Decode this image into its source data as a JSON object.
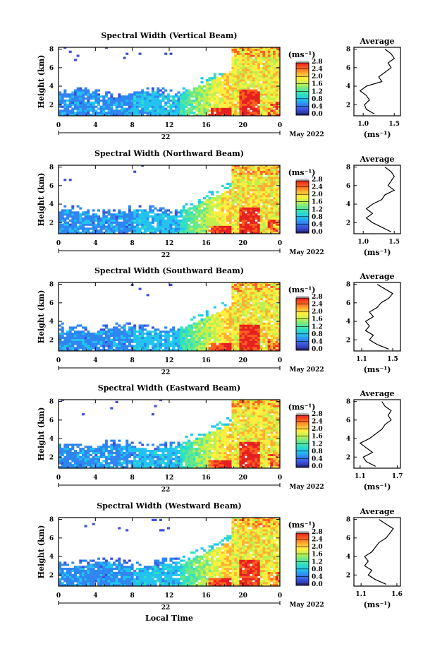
{
  "figure": {
    "x_axis_label": "Local Time",
    "date_label": "May 2022",
    "day_label": "22",
    "unit_label": "(ms⁻¹)",
    "colorbar_ticks": [
      "0.0",
      "0.4",
      "0.8",
      "1.2",
      "1.6",
      "2.0",
      "2.4",
      "2.8"
    ],
    "colormap": [
      "#2a2a8a",
      "#3b4fd8",
      "#2f86f0",
      "#22c3f0",
      "#31e0c0",
      "#69e88a",
      "#bff050",
      "#fff040",
      "#ffb030",
      "#ff6020",
      "#e62020"
    ]
  },
  "chart_data": [
    {
      "type": "heatmap",
      "title": "Spectral Width (Vertical Beam)",
      "ylabel": "Height (km)",
      "x_ticks": [
        "0",
        "4",
        "8",
        "12",
        "16",
        "20",
        "0"
      ],
      "y_ticks": [
        "2",
        "4",
        "6",
        "8"
      ],
      "xlim": [
        0,
        24
      ],
      "ylim": [
        0.8,
        8.2
      ],
      "clim": [
        0.0,
        2.8
      ],
      "profile": {
        "title": "Average",
        "xlabel": "(ms⁻¹)",
        "x_ticks": [
          "1.0",
          "1.5"
        ],
        "xlim": [
          0.85,
          1.6
        ],
        "heights": [
          1.0,
          1.5,
          2.0,
          2.5,
          3.0,
          3.5,
          4.0,
          4.5,
          5.0,
          5.5,
          6.0,
          6.5,
          7.0,
          7.5,
          8.0
        ],
        "values": [
          1.18,
          1.05,
          1.02,
          1.1,
          1.05,
          0.95,
          1.05,
          1.3,
          1.25,
          1.35,
          1.45,
          1.4,
          1.5,
          1.45,
          1.35
        ]
      }
    },
    {
      "type": "heatmap",
      "title": "Spectral Width (Northward Beam)",
      "ylabel": "Height (km)",
      "x_ticks": [
        "0",
        "4",
        "8",
        "12",
        "16",
        "20",
        "0"
      ],
      "y_ticks": [
        "2",
        "4",
        "6",
        "8"
      ],
      "xlim": [
        0,
        24
      ],
      "ylim": [
        0.8,
        8.2
      ],
      "clim": [
        0.0,
        2.8
      ],
      "profile": {
        "title": "Average",
        "xlabel": "(ms⁻¹)",
        "x_ticks": [
          "1.0",
          "1.5"
        ],
        "xlim": [
          0.85,
          1.6
        ],
        "heights": [
          1.0,
          1.5,
          2.0,
          2.5,
          3.0,
          3.5,
          4.0,
          4.5,
          5.0,
          5.5,
          6.0,
          6.5,
          7.0,
          7.5,
          8.0
        ],
        "values": [
          1.45,
          1.3,
          1.15,
          1.05,
          1.15,
          1.05,
          1.15,
          1.3,
          1.35,
          1.5,
          1.4,
          1.45,
          1.5,
          1.45,
          1.35
        ]
      }
    },
    {
      "type": "heatmap",
      "title": "Spectral Width (Southward Beam)",
      "ylabel": "Height (km)",
      "x_ticks": [
        "0",
        "4",
        "8",
        "12",
        "16",
        "20",
        "0"
      ],
      "y_ticks": [
        "2",
        "4",
        "6",
        "8"
      ],
      "xlim": [
        0,
        24
      ],
      "ylim": [
        0.8,
        8.2
      ],
      "clim": [
        0.0,
        2.8
      ],
      "profile": {
        "title": "Average",
        "xlabel": "(ms⁻¹)",
        "x_ticks": [
          "1.1",
          "1.5"
        ],
        "xlim": [
          1.0,
          1.6
        ],
        "heights": [
          1.0,
          1.5,
          2.0,
          2.5,
          3.0,
          3.5,
          4.0,
          4.5,
          5.0,
          5.5,
          6.0,
          6.5,
          7.0,
          7.5,
          8.0
        ],
        "values": [
          1.45,
          1.3,
          1.2,
          1.25,
          1.15,
          1.2,
          1.15,
          1.25,
          1.2,
          1.3,
          1.35,
          1.45,
          1.5,
          1.4,
          1.3
        ]
      }
    },
    {
      "type": "heatmap",
      "title": "Spectral Width (Eastward Beam)",
      "ylabel": "Height (km)",
      "x_ticks": [
        "0",
        "4",
        "8",
        "12",
        "16",
        "20",
        "0"
      ],
      "y_ticks": [
        "2",
        "4",
        "6",
        "8"
      ],
      "xlim": [
        0,
        24
      ],
      "ylim": [
        0.8,
        8.2
      ],
      "clim": [
        0.0,
        2.8
      ],
      "profile": {
        "title": "Average",
        "xlabel": "(ms⁻¹)",
        "x_ticks": [
          "1.1",
          "1.7"
        ],
        "xlim": [
          1.0,
          1.75
        ],
        "heights": [
          1.0,
          1.5,
          2.0,
          2.5,
          3.0,
          3.5,
          4.0,
          4.5,
          5.0,
          5.5,
          6.0,
          6.5,
          7.0,
          7.5,
          8.0
        ],
        "values": [
          1.35,
          1.2,
          1.15,
          1.3,
          1.2,
          1.1,
          1.25,
          1.35,
          1.45,
          1.5,
          1.6,
          1.55,
          1.6,
          1.5,
          1.45
        ]
      }
    },
    {
      "type": "heatmap",
      "title": "Spectral Width (Westward Beam)",
      "ylabel": "Height (km)",
      "x_ticks": [
        "0",
        "4",
        "8",
        "12",
        "16",
        "20",
        "0"
      ],
      "y_ticks": [
        "2",
        "4",
        "6",
        "8"
      ],
      "xlim": [
        0,
        24
      ],
      "ylim": [
        0.8,
        8.2
      ],
      "clim": [
        0.0,
        2.8
      ],
      "profile": {
        "title": "Average",
        "xlabel": "(ms⁻¹)",
        "x_ticks": [
          "1.1",
          "1.6"
        ],
        "xlim": [
          1.0,
          1.65
        ],
        "heights": [
          1.0,
          1.5,
          2.0,
          2.5,
          3.0,
          3.5,
          4.0,
          4.5,
          5.0,
          5.5,
          6.0,
          6.5,
          7.0,
          7.5,
          8.0
        ],
        "values": [
          1.45,
          1.3,
          1.2,
          1.25,
          1.15,
          1.2,
          1.15,
          1.25,
          1.3,
          1.35,
          1.45,
          1.5,
          1.55,
          1.45,
          1.35
        ]
      }
    }
  ]
}
